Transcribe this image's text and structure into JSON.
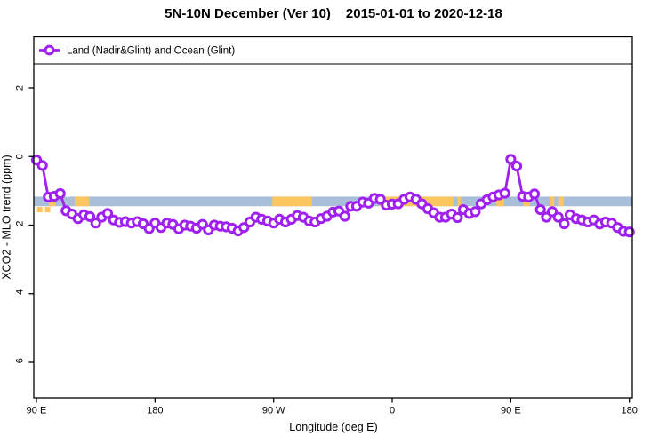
{
  "title": {
    "main": "5N-10N December (Ver 10)",
    "date_range": "2015-01-01 to 2020-12-18"
  },
  "chart_data": {
    "type": "line",
    "title": "5N-10N December (Ver 10)   2015-01-01 to 2020-12-18",
    "xlabel": "Longitude (deg E)",
    "ylabel": "XCO2 - MLO trend (ppm)",
    "xlim": [
      90,
      540
    ],
    "ylim": [
      -7,
      3.5
    ],
    "grid": false,
    "legend_position": "top-left-full-width-box",
    "legend": {
      "label": "Land (Nadir&Glint) and Ocean (Glint)",
      "marker": "open-circle-on-line"
    },
    "x_ticks": [
      {
        "value": 90,
        "label": "90 E"
      },
      {
        "value": 180,
        "label": "180"
      },
      {
        "value": 270,
        "label": "90 W"
      },
      {
        "value": 360,
        "label": "0"
      },
      {
        "value": 450,
        "label": "90 E"
      },
      {
        "value": 540,
        "label": "180"
      }
    ],
    "y_ticks": [
      {
        "value": 2,
        "label": "2"
      },
      {
        "value": 0,
        "label": "0"
      },
      {
        "value": -2,
        "label": "-2"
      },
      {
        "value": -4,
        "label": "-4"
      },
      {
        "value": -6,
        "label": "-6"
      }
    ],
    "colors": {
      "series": "#A020F0",
      "ocean_band": "#A9BED9",
      "land_band": "#FBC55F",
      "axis": "#000000",
      "background": "#FFFFFF"
    },
    "land_ocean_strip": {
      "top_ppm": -1.17,
      "bottom_ppm": -1.45,
      "land_patches_deg": [
        [
          99.5,
          104.5
        ],
        [
          119,
          130
        ],
        [
          269,
          299
        ],
        [
          350.5,
          406.5
        ],
        [
          409.5,
          412
        ],
        [
          439,
          445
        ],
        [
          459.5,
          464.5
        ],
        [
          479.5,
          483
        ],
        [
          486,
          490
        ]
      ],
      "land_flecks_below_deg": [
        [
          90.5,
          94.5
        ],
        [
          96.5,
          100.5
        ]
      ],
      "flecks_top_ppm": -1.47,
      "flecks_bottom_ppm": -1.63
    },
    "series": [
      {
        "name": "Land (Nadir&Glint) and Ocean (Glint)",
        "color": "#A020F0",
        "marker": "open-circle",
        "x": [
          90,
          94.5,
          99,
          103.5,
          108,
          112.5,
          117,
          121.5,
          126,
          130.5,
          135,
          139.5,
          144,
          148.5,
          153,
          157.5,
          162,
          166.5,
          171,
          175.5,
          180,
          184.5,
          189,
          193.5,
          198,
          202.5,
          207,
          211.5,
          216,
          220.5,
          225,
          229.5,
          234,
          238.5,
          243,
          247.5,
          252,
          256.5,
          261,
          265.5,
          270,
          274.5,
          279,
          283.5,
          288,
          292.5,
          297,
          301.5,
          306,
          310.5,
          315,
          319.5,
          324,
          328.5,
          333,
          337.5,
          342,
          346.5,
          351,
          355.5,
          360,
          364.5,
          369,
          373.5,
          378,
          382.5,
          387,
          391.5,
          396,
          400.5,
          405,
          409.5,
          414,
          418.5,
          423,
          427.5,
          432,
          436.5,
          441,
          445.5,
          450,
          454.5,
          459,
          463.5,
          468,
          472.5,
          477,
          481.5,
          486,
          490.5,
          495,
          499.5,
          504,
          508.5,
          513,
          517.5,
          522,
          526.5,
          531,
          535.5,
          540
        ],
        "y": [
          -0.1,
          -0.26,
          -1.18,
          -1.16,
          -1.08,
          -1.58,
          -1.68,
          -1.81,
          -1.7,
          -1.75,
          -1.94,
          -1.77,
          -1.66,
          -1.85,
          -1.92,
          -1.9,
          -1.94,
          -1.9,
          -1.96,
          -2.1,
          -1.94,
          -2.07,
          -1.94,
          -1.98,
          -2.11,
          -2.0,
          -2.03,
          -2.09,
          -1.98,
          -2.14,
          -2.0,
          -2.03,
          -2.05,
          -2.09,
          -2.17,
          -2.07,
          -1.91,
          -1.77,
          -1.83,
          -1.88,
          -1.94,
          -1.83,
          -1.91,
          -1.83,
          -1.72,
          -1.77,
          -1.88,
          -1.91,
          -1.81,
          -1.74,
          -1.62,
          -1.59,
          -1.74,
          -1.45,
          -1.45,
          -1.33,
          -1.36,
          -1.22,
          -1.25,
          -1.42,
          -1.39,
          -1.38,
          -1.25,
          -1.18,
          -1.25,
          -1.38,
          -1.52,
          -1.64,
          -1.77,
          -1.77,
          -1.68,
          -1.78,
          -1.55,
          -1.66,
          -1.61,
          -1.38,
          -1.26,
          -1.18,
          -1.12,
          -1.07,
          -0.08,
          -0.28,
          -1.16,
          -1.18,
          -1.09,
          -1.55,
          -1.77,
          -1.61,
          -1.77,
          -1.96,
          -1.7,
          -1.81,
          -1.85,
          -1.91,
          -1.85,
          -1.97,
          -1.91,
          -1.94,
          -2.07,
          -2.18,
          -2.2
        ]
      }
    ]
  }
}
